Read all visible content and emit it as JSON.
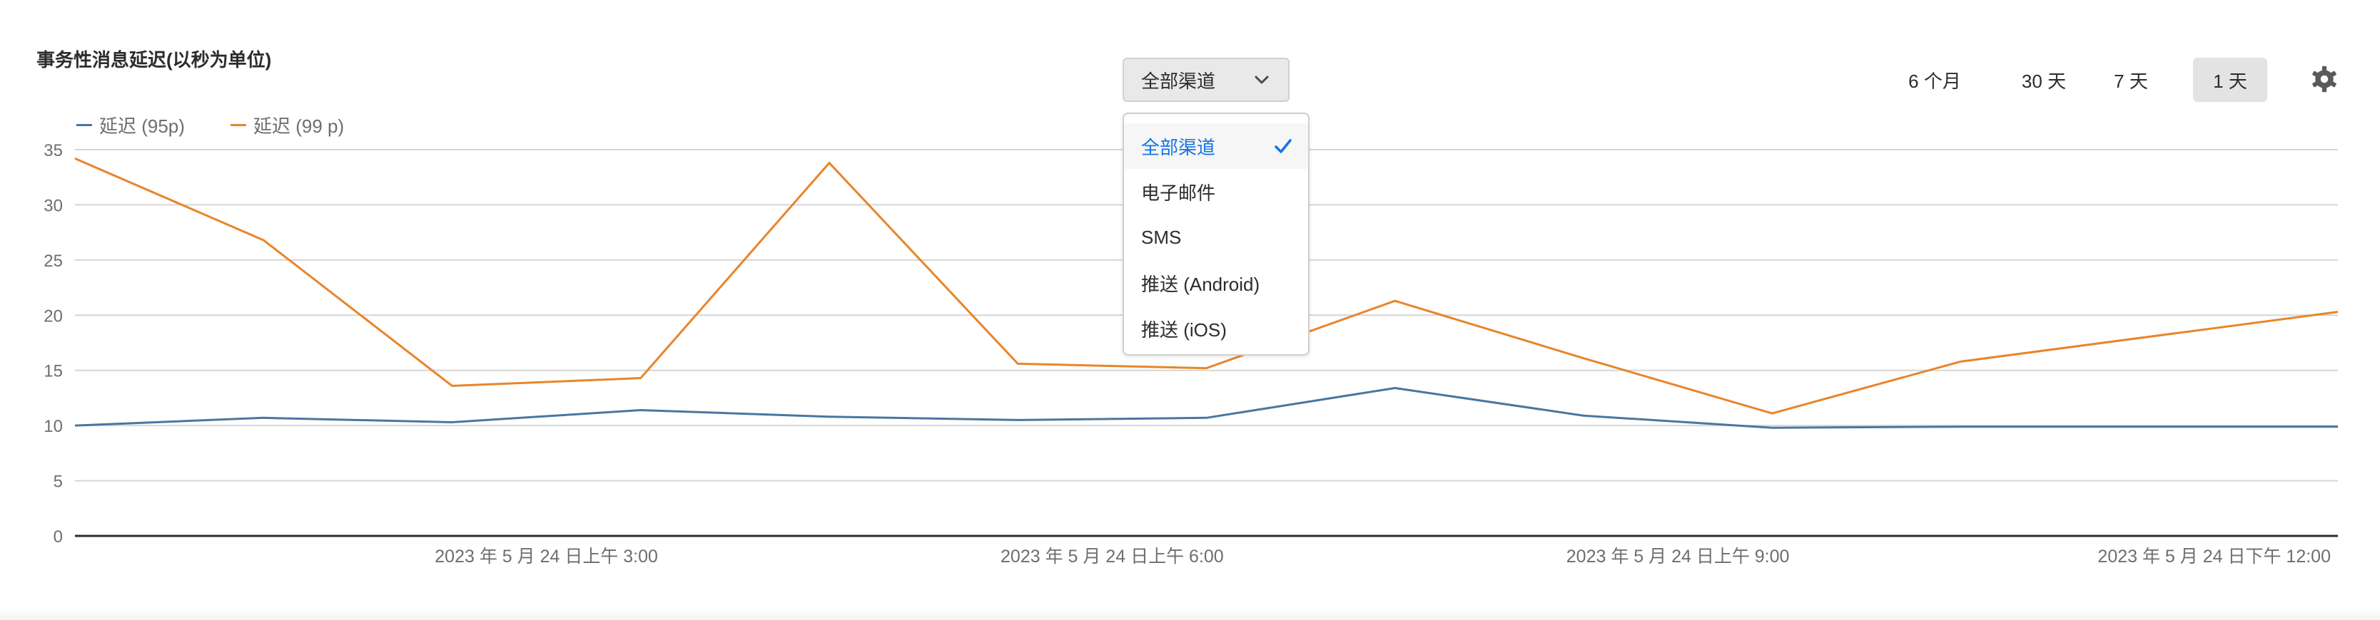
{
  "header": {
    "title": "事务性消息延迟(以秒为单位)"
  },
  "channel_filter": {
    "selected": "全部渠道",
    "options": [
      "全部渠道",
      "电子邮件",
      "SMS",
      "推送 (Android)",
      "推送 (iOS)"
    ]
  },
  "time_range": {
    "buttons": [
      "6 个月",
      "30 天",
      "7 天",
      "1 天"
    ],
    "active": "1 天"
  },
  "colors": {
    "p95": "#4a76a0",
    "p99": "#e8852a",
    "accent": "#1473e6",
    "grid": "#d6d6d6",
    "axis": "#2c2c2c"
  },
  "chart_data": {
    "type": "line",
    "title": "事务性消息延迟(以秒为单位)",
    "ylim": [
      0,
      35
    ],
    "yticks": [
      0,
      5,
      10,
      15,
      20,
      25,
      30,
      35
    ],
    "x_tick_labels": [
      "2023 年 5 月 24 日上午 3:00",
      "2023 年 5 月 24 日上午 6:00",
      "2023 年 5 月 24 日上午 9:00",
      "2023 年 5 月 24 日下午 12:00"
    ],
    "x_tick_positions": [
      2.5,
      5.5,
      8.5,
      11.6
    ],
    "x": [
      0,
      1,
      2,
      3,
      4,
      5,
      6,
      7,
      8,
      9,
      10,
      12
    ],
    "x_max": 12,
    "legend": [
      "延迟 (95p)",
      "延迟 (99 p)"
    ],
    "series": [
      {
        "name": "延迟 (95p)",
        "values": [
          10.0,
          10.7,
          10.3,
          11.4,
          10.8,
          10.5,
          10.7,
          13.4,
          10.9,
          9.8,
          9.9,
          9.9
        ]
      },
      {
        "name": "延迟 (99 p)",
        "values": [
          34.2,
          26.8,
          13.6,
          14.3,
          33.8,
          15.6,
          15.2,
          21.3,
          16.1,
          11.1,
          15.8,
          20.3
        ]
      }
    ]
  }
}
